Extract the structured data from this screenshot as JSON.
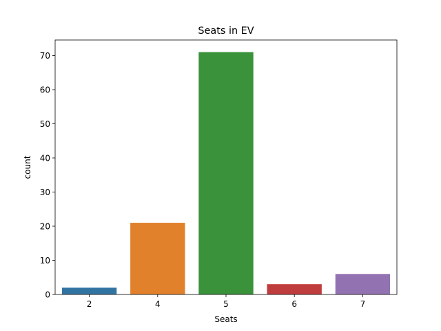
{
  "chart_data": {
    "type": "bar",
    "title": "Seats in EV",
    "xlabel": "Seats",
    "ylabel": "count",
    "categories": [
      "2",
      "4",
      "5",
      "6",
      "7"
    ],
    "values": [
      2,
      21,
      71,
      3,
      6
    ],
    "colors": [
      "#3274a1",
      "#e1812c",
      "#3a923a",
      "#c03d3e",
      "#9372b2"
    ],
    "ylim": [
      0,
      74.55
    ],
    "yticks": [
      0,
      10,
      20,
      30,
      40,
      50,
      60,
      70
    ],
    "grid": false,
    "legend": "none"
  }
}
